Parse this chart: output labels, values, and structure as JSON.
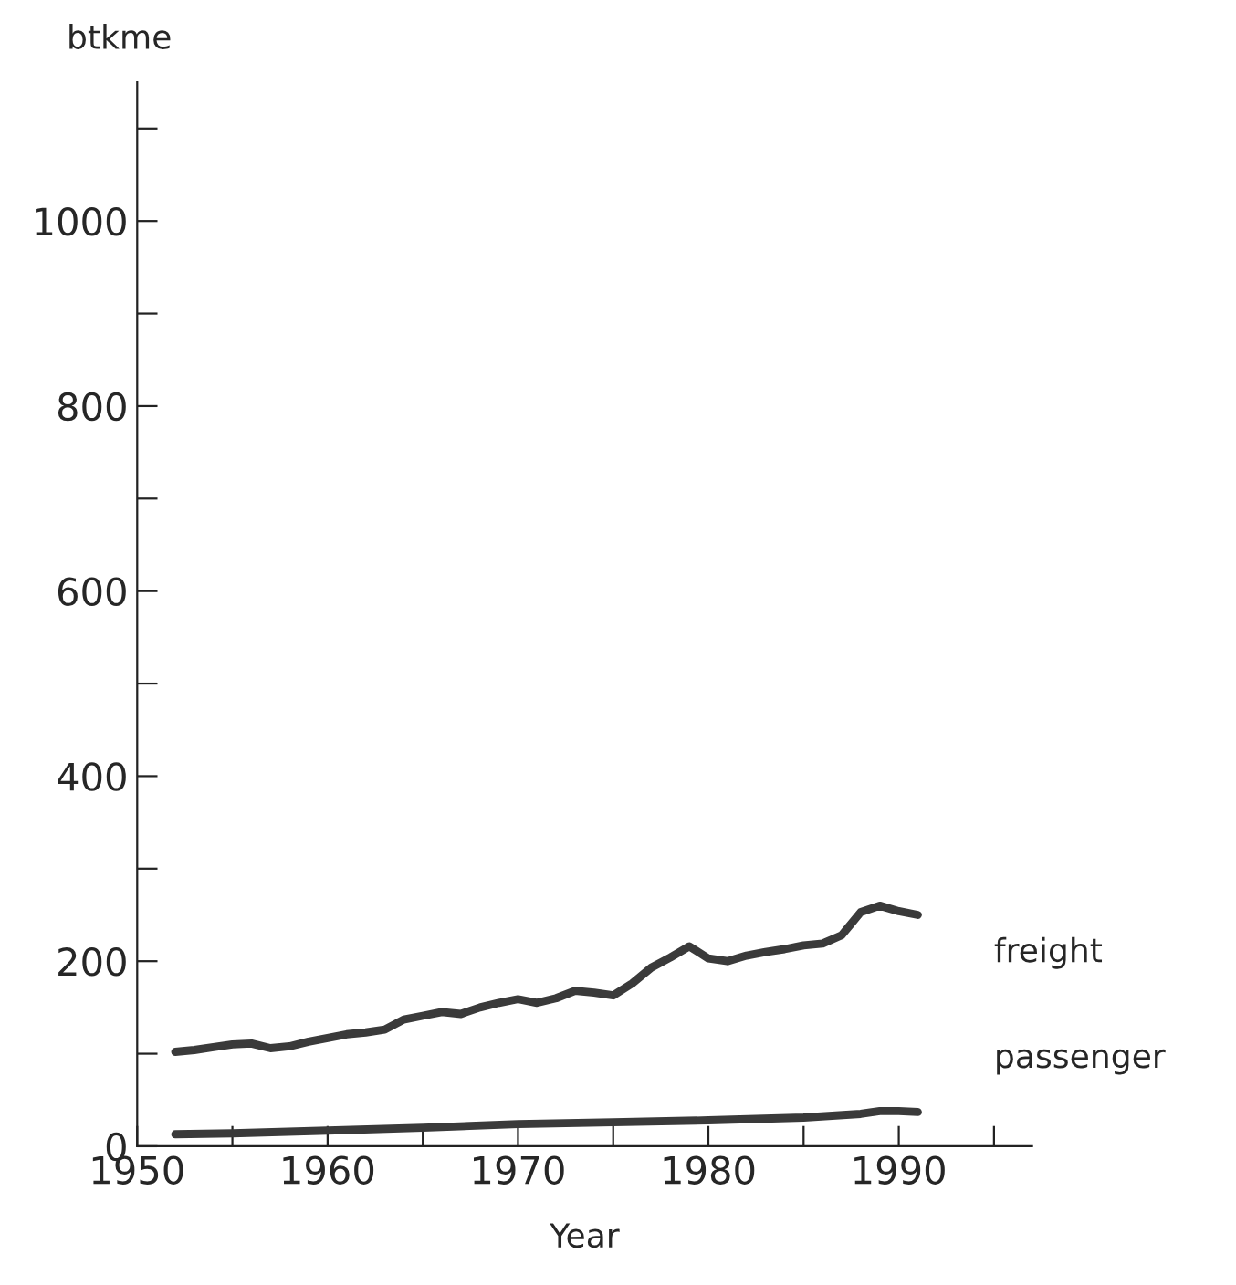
{
  "chart_data": {
    "type": "line",
    "xlabel": "Year",
    "ylabel": "btkme",
    "series": [
      {
        "name": "freight",
        "color": "#3a3a3a",
        "x": [
          1952,
          1953,
          1954,
          1955,
          1956,
          1957,
          1958,
          1959,
          1960,
          1961,
          1962,
          1963,
          1964,
          1965,
          1966,
          1967,
          1968,
          1969,
          1970,
          1971,
          1972,
          1973,
          1974,
          1975,
          1976,
          1977,
          1978,
          1979,
          1980,
          1981,
          1982,
          1983,
          1984,
          1985,
          1986,
          1987,
          1988,
          1989,
          1990,
          1991
        ],
        "values": [
          102,
          104,
          107,
          110,
          111,
          106,
          108,
          113,
          117,
          121,
          123,
          126,
          137,
          141,
          145,
          143,
          150,
          155,
          159,
          155,
          160,
          168,
          166,
          163,
          176,
          193,
          204,
          216,
          203,
          200,
          206,
          210,
          213,
          217,
          219,
          228,
          253,
          260,
          254,
          250
        ]
      },
      {
        "name": "passenger",
        "color": "#3a3a3a",
        "x": [
          1952,
          1955,
          1960,
          1965,
          1970,
          1975,
          1980,
          1985,
          1988,
          1989,
          1990,
          1991
        ],
        "values": [
          13,
          14,
          17,
          20,
          24,
          26,
          28,
          31,
          35,
          38,
          38,
          37
        ]
      }
    ],
    "xlim": [
      1950,
      1997
    ],
    "ylim": [
      0,
      1150
    ],
    "xticks": [
      1950,
      {
        "value": 1955,
        "label": null
      },
      1960,
      {
        "value": 1965,
        "label": null
      },
      1970,
      {
        "value": 1975,
        "label": null
      },
      1980,
      {
        "value": 1985,
        "label": null
      },
      1990,
      {
        "value": 1995,
        "label": null
      }
    ],
    "yticks": [
      0,
      {
        "value": 100,
        "label": null
      },
      200,
      {
        "value": 300,
        "label": null
      },
      400,
      {
        "value": 500,
        "label": null
      },
      600,
      {
        "value": 700,
        "label": null
      },
      800,
      {
        "value": 900,
        "label": null
      },
      1000,
      {
        "value": 1100,
        "label": null
      }
    ],
    "grid": false,
    "legend": false,
    "line_style": "solid",
    "marker": "none"
  }
}
